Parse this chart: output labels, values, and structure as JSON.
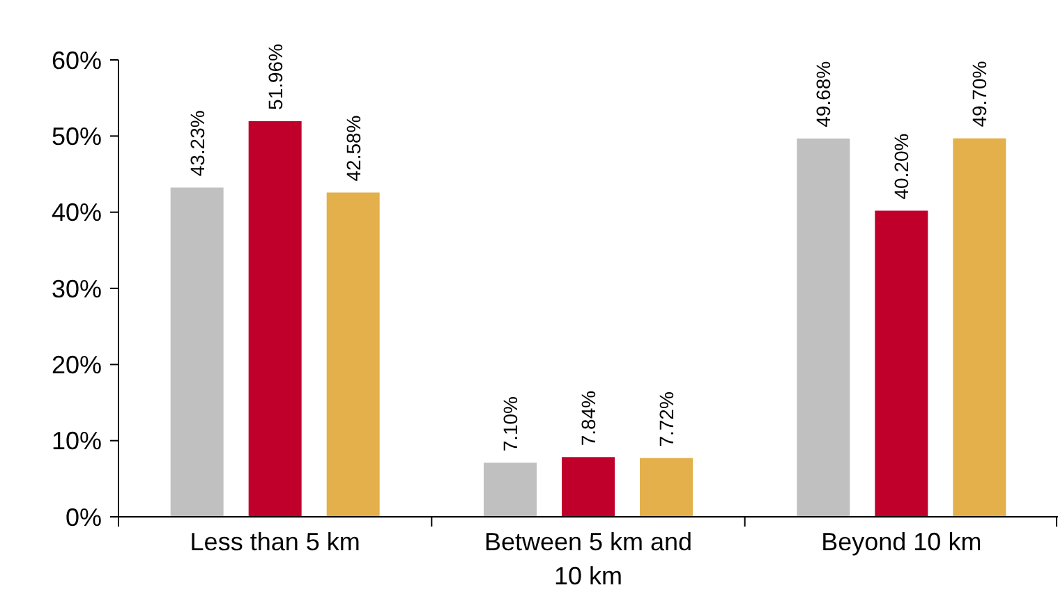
{
  "chart_data": {
    "type": "bar",
    "categories": [
      "Less than 5 km",
      "Between 5 km and 10 km",
      "Beyond 10 km"
    ],
    "series": [
      {
        "color": "#c0c0c0",
        "values": [
          43.23,
          7.1,
          49.68
        ],
        "value_labels": [
          "43.23%",
          "7.10%",
          "49.68%"
        ]
      },
      {
        "color": "#c0002b",
        "values": [
          51.96,
          7.84,
          40.2
        ],
        "value_labels": [
          "51.96%",
          "7.84%",
          "40.20%"
        ]
      },
      {
        "color": "#e3b04b",
        "values": [
          42.58,
          7.72,
          49.7
        ],
        "value_labels": [
          "42.58%",
          "7.72%",
          "49.70%"
        ]
      }
    ],
    "ylim": [
      0,
      60
    ],
    "yticks": [
      {
        "value": 0,
        "label": "0%"
      },
      {
        "value": 10,
        "label": "10%"
      },
      {
        "value": 20,
        "label": "20%"
      },
      {
        "value": 30,
        "label": "30%"
      },
      {
        "value": 40,
        "label": "40%"
      },
      {
        "value": 50,
        "label": "50%"
      },
      {
        "value": 60,
        "label": "60%"
      }
    ],
    "grid": false
  }
}
